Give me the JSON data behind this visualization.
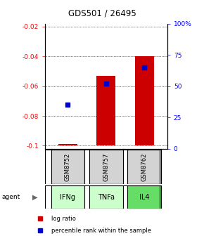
{
  "title": "GDS501 / 26495",
  "samples": [
    "GSM8752",
    "GSM8757",
    "GSM8762"
  ],
  "agents": [
    "IFNg",
    "TNFa",
    "IL4"
  ],
  "log_ratios": [
    -0.099,
    -0.053,
    -0.04
  ],
  "percentile_ranks": [
    35,
    52,
    65
  ],
  "bar_color": "#cc0000",
  "dot_color": "#0000cc",
  "ylim_left": [
    -0.102,
    -0.018
  ],
  "ylim_right": [
    0,
    100
  ],
  "yticks_left": [
    -0.1,
    -0.08,
    -0.06,
    -0.04,
    -0.02
  ],
  "ytick_labels_left": [
    "-0.1",
    "-0.08",
    "-0.06",
    "-0.04",
    "-0.02"
  ],
  "yticks_right": [
    0,
    25,
    50,
    75,
    100
  ],
  "ytick_labels_right": [
    "0",
    "25",
    "50",
    "75",
    "100%"
  ],
  "baseline": -0.1,
  "bar_width": 0.5,
  "agent_colors": [
    "#ccffcc",
    "#ccffcc",
    "#66dd66"
  ],
  "sample_box_color": "#d3d3d3",
  "legend_items": [
    "log ratio",
    "percentile rank within the sample"
  ],
  "legend_colors": [
    "#cc0000",
    "#0000cc"
  ]
}
